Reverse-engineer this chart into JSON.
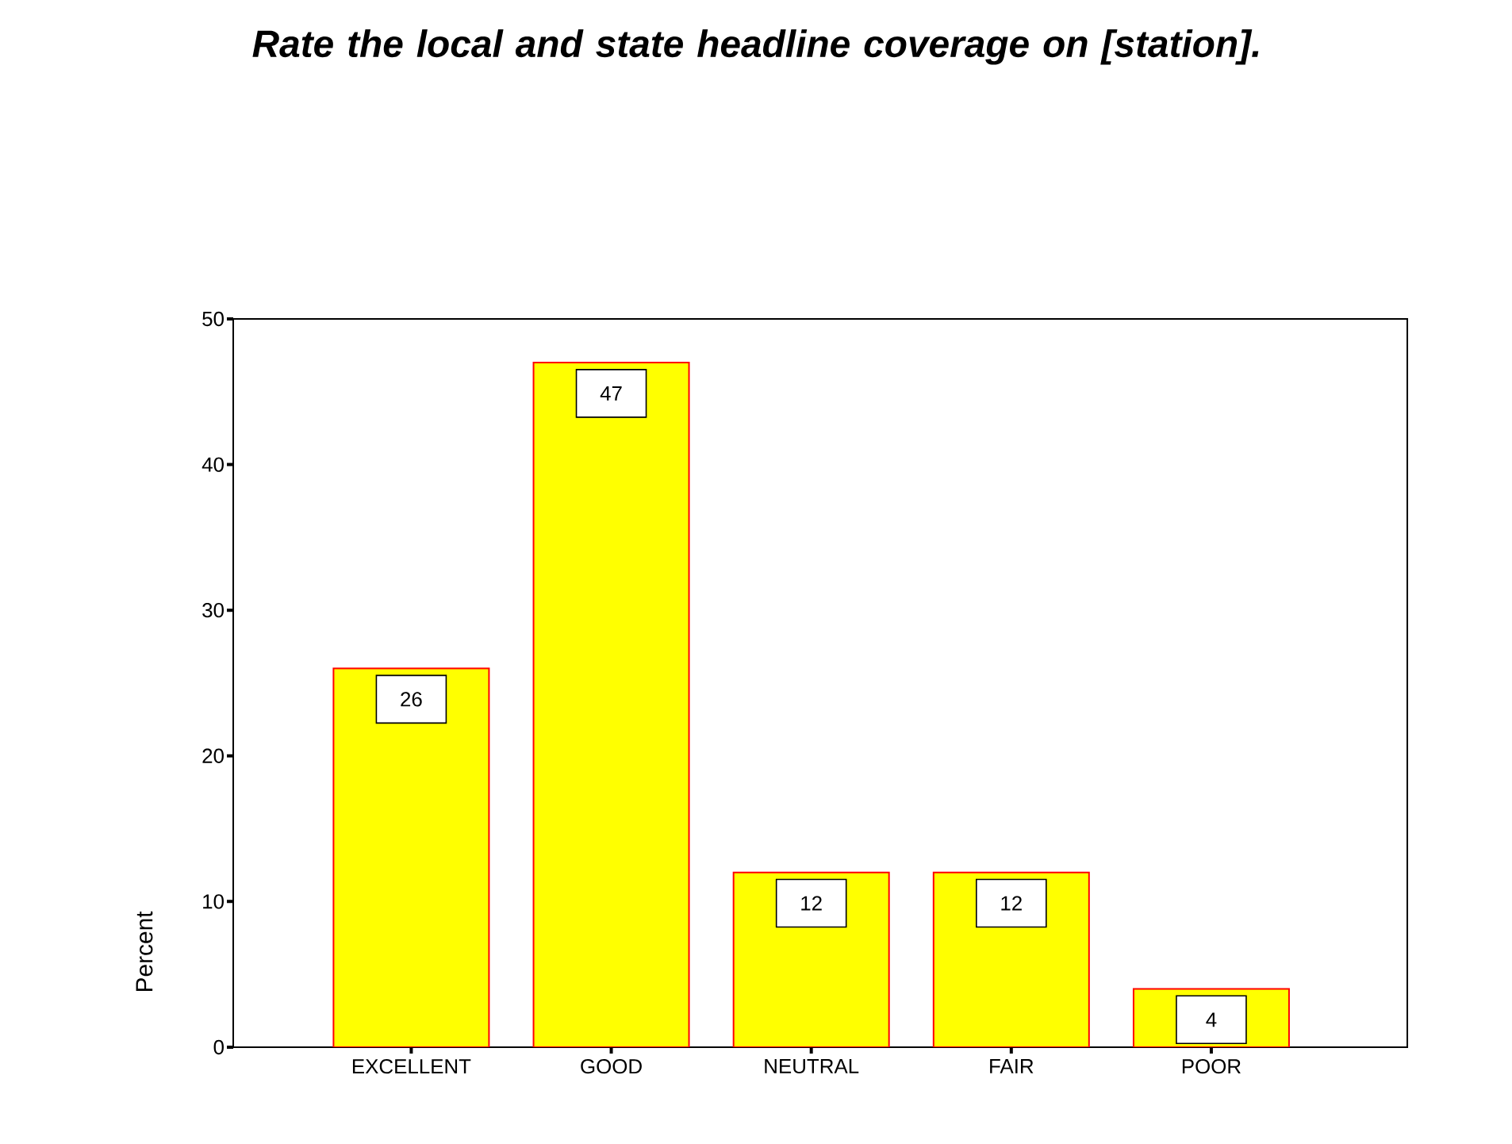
{
  "chart_data": {
    "type": "bar",
    "title": "Rate the local and state headline coverage on [station].",
    "ylabel": "Percent",
    "categories": [
      "EXCELLENT",
      "GOOD",
      "NEUTRAL",
      "FAIR",
      "POOR"
    ],
    "values": [
      26,
      47,
      12,
      12,
      4
    ],
    "color": "#ffff00",
    "ylim": [
      0,
      50
    ],
    "yticks": [
      0,
      10,
      20,
      30,
      40,
      50
    ],
    "data_labels": true
  }
}
